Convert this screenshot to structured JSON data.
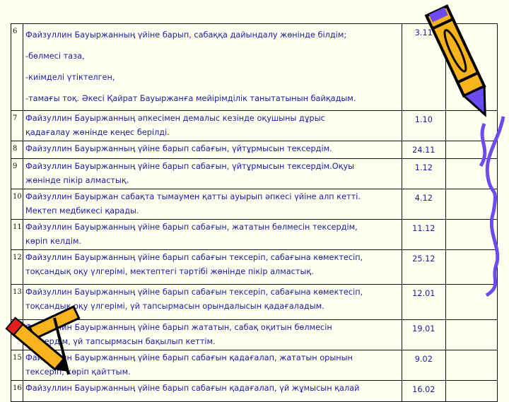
{
  "rows": [
    {
      "num": "6",
      "lines": [
        "Файзуллин Бауыржанның  үйіне   барып,  сабаққа  дайындалу жөнінде білдім;",
        "-бөлмесі таза,",
        "-киімделі үтіктелген,",
        "-тамағы тоқ. Әкесі Қайрат  Бауыржанға  мейірімділік танытатынын байқадым."
      ],
      "date": "3.11",
      "h": 113
    },
    {
      "num": "7",
      "lines": [
        "Файзуллин Бауыржанның   әпкесімен демалыс кезінде   оқушыны  дұрыс",
        "қадағалау жөнінде кеңес берілді."
      ],
      "date": "1.10",
      "h": 42
    },
    {
      "num": "8",
      "lines": [
        "Файзуллин Бауыржанның   үйіне барып  сабағын, үйтұрмысын тексердім."
      ],
      "date": "24.11",
      "h": 23
    },
    {
      "num": "9",
      "lines": [
        "Файзуллин Бауыржанның   үйіне барып  сабағын, үйтұрмысын тексердім.Оқуы",
        "жөнінде пікір алмастық."
      ],
      "date": "1.12",
      "h": 43
    },
    {
      "num": "10",
      "lines": [
        "Файзуллин Бауыржан сабақта тымаумен қатты ауырып әпкесі үйіне алп кетті.",
        "Мектеп медбикесі  қарады."
      ],
      "date": "4.12",
      "h": 42
    },
    {
      "num": "11",
      "lines": [
        "Файзуллин Бауыржанның   үйіне барып  сабағын, жататын бөлмесін тексердім,",
        "көріп келдім."
      ],
      "date": "11.12",
      "h": 42
    },
    {
      "num": "12",
      "lines": [
        "Файзуллин Бауыржанның   үйіне барып  сабағын тексеріп, сабағына көмектесіп,",
        "тоқсандық оқу үлгерімі,  мектептегі тәртібі жөнінде пікір алмастық."
      ],
      "date": "25.12",
      "h": 49
    },
    {
      "num": "13",
      "lines": [
        "Файзуллин Бауыржанның   үйіне барып  сабағын тексеріп, сабағына көмектесіп,",
        "тоқсандық оқу үлгерімі, үй тапсырмасын орындалысын қадағаладым."
      ],
      "date": "12.01",
      "h": 50
    },
    {
      "num": "14",
      "lines": [
        "Файзуллин Бауыржанның   үйіне барып   жататын, сабақ оқитын бөлмесін",
        "тексердім, үй тапсырмасын бақылып кеттім."
      ],
      "date": "19.01",
      "h": 43
    },
    {
      "num": "15",
      "lines": [
        "Файзуллин Бауыржанның   үйіне барып    сабағын қадағалап,  жататын орынын",
        "тексеріп, көріп қайттым."
      ],
      "date": "9.02",
      "h": 42
    },
    {
      "num": "16",
      "lines": [
        "Файзуллин Бауыржанның   үйіне барып    сабағын қадағалап,  үй жұмысын  қалай"
      ],
      "date": "16.02",
      "h": 30
    }
  ],
  "colors": {
    "background": "#fffff0",
    "text": "#1c1ca8",
    "pencil_body": "#f7b21c",
    "scribble": "#6a4cf0"
  },
  "icons": {
    "top_right": "pencil-clipart",
    "bottom_left": "crossed-pencils-clipart"
  }
}
